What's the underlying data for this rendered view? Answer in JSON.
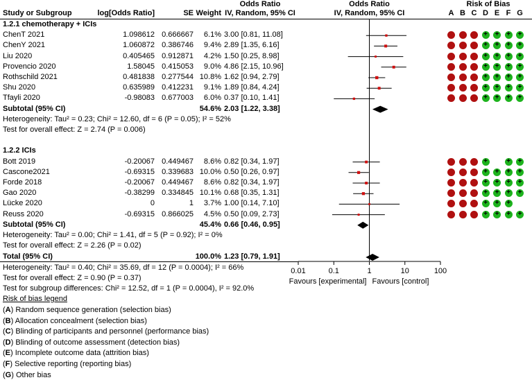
{
  "chart_data": {
    "type": "forest",
    "title": "Odds Ratio",
    "headers": {
      "study": "Study or Subgroup",
      "logor": "log[Odds Ratio]",
      "se": "SE",
      "weight": "Weight",
      "or_top": "Odds Ratio",
      "or_sub": "IV, Random, 95% CI",
      "plot_top": "Odds Ratio",
      "plot_sub": "IV, Random, 95% CI",
      "rob_title": "Risk of Bias",
      "rob_letters": [
        "A",
        "B",
        "C",
        "D",
        "E",
        "F",
        "G"
      ]
    },
    "x_scale": "log",
    "x_ticks": [
      "0.01",
      "0.1",
      "1",
      "10",
      "100"
    ],
    "x_range": [
      0.01,
      100
    ],
    "favours_left": "Favours [experimental]",
    "favours_right": "Favours [control]",
    "groups": [
      {
        "label": "1.2.1 chemotherapy + ICIs",
        "studies": [
          {
            "name": "ChenT 2021",
            "logor": "1.098612",
            "se": "0.666667",
            "weight": "6.1%",
            "ci": "3.00 [0.81, 11.08]",
            "or": 3.0,
            "lo": 0.81,
            "hi": 11.08,
            "rob": [
              "-",
              "-",
              "-",
              "+",
              "+",
              "+",
              "+"
            ]
          },
          {
            "name": "ChenY 2021",
            "logor": "1.060872",
            "se": "0.386746",
            "weight": "9.4%",
            "ci": "2.89 [1.35, 6.16]",
            "or": 2.89,
            "lo": 1.35,
            "hi": 6.16,
            "rob": [
              "-",
              "-",
              "-",
              "+",
              "+",
              "+",
              "+"
            ]
          },
          {
            "name": "Liu 2020",
            "logor": "0.405465",
            "se": "0.912871",
            "weight": "4.2%",
            "ci": "1.50 [0.25, 8.98]",
            "or": 1.5,
            "lo": 0.25,
            "hi": 8.98,
            "rob": [
              "-",
              "-",
              "-",
              "+",
              "+",
              "+",
              "+"
            ]
          },
          {
            "name": "Provencio 2020",
            "logor": "1.58045",
            "se": "0.415053",
            "weight": "9.0%",
            "ci": "4.86 [2.15, 10.96]",
            "or": 4.86,
            "lo": 2.15,
            "hi": 10.96,
            "rob": [
              "-",
              "-",
              "-",
              "+",
              "+",
              "+",
              "+"
            ]
          },
          {
            "name": "Rothschild 2021",
            "logor": "0.481838",
            "se": "0.277544",
            "weight": "10.8%",
            "ci": "1.62 [0.94, 2.79]",
            "or": 1.62,
            "lo": 0.94,
            "hi": 2.79,
            "rob": [
              "-",
              "-",
              "-",
              "+",
              "+",
              "+",
              "+"
            ]
          },
          {
            "name": "Shu 2020",
            "logor": "0.635989",
            "se": "0.412231",
            "weight": "9.1%",
            "ci": "1.89 [0.84, 4.24]",
            "or": 1.89,
            "lo": 0.84,
            "hi": 4.24,
            "rob": [
              "-",
              "-",
              "-",
              "+",
              "+",
              "+",
              "+"
            ]
          },
          {
            "name": "Tfayli 2020",
            "logor": "-0.98083",
            "se": "0.677003",
            "weight": "6.0%",
            "ci": "0.37 [0.10, 1.41]",
            "or": 0.37,
            "lo": 0.1,
            "hi": 1.41,
            "rob": [
              "-",
              "-",
              "-",
              "+",
              "+",
              "+",
              "+"
            ]
          }
        ],
        "subtotal": {
          "label": "Subtotal (95% CI)",
          "weight": "54.6%",
          "ci": "2.03 [1.22, 3.38]",
          "or": 2.03,
          "lo": 1.22,
          "hi": 3.38
        },
        "heterogeneity": "Heterogeneity: Tau² = 0.23; Chi² = 12.60, df = 6 (P = 0.05); I² = 52%",
        "overall": "Test for overall effect: Z = 2.74 (P = 0.006)"
      },
      {
        "label": "1.2.2 ICIs",
        "studies": [
          {
            "name": "Bott 2019",
            "logor": "-0.20067",
            "se": "0.449467",
            "weight": "8.6%",
            "ci": "0.82 [0.34, 1.97]",
            "or": 0.82,
            "lo": 0.34,
            "hi": 1.97,
            "rob": [
              "-",
              "-",
              "-",
              "+",
              "",
              "+",
              "+"
            ]
          },
          {
            "name": "Cascone2021",
            "logor": "-0.69315",
            "se": "0.339683",
            "weight": "10.0%",
            "ci": "0.50 [0.26, 0.97]",
            "or": 0.5,
            "lo": 0.26,
            "hi": 0.97,
            "rob": [
              "-",
              "-",
              "-",
              "+",
              "+",
              "+",
              "+"
            ]
          },
          {
            "name": "Forde 2018",
            "logor": "-0.20067",
            "se": "0.449467",
            "weight": "8.6%",
            "ci": "0.82 [0.34, 1.97]",
            "or": 0.82,
            "lo": 0.34,
            "hi": 1.97,
            "rob": [
              "-",
              "-",
              "-",
              "+",
              "+",
              "+",
              "+"
            ]
          },
          {
            "name": "Gao 2020",
            "logor": "-0.38299",
            "se": "0.334845",
            "weight": "10.1%",
            "ci": "0.68 [0.35, 1.31]",
            "or": 0.68,
            "lo": 0.35,
            "hi": 1.31,
            "rob": [
              "-",
              "-",
              "-",
              "+",
              "+",
              "+",
              "+"
            ]
          },
          {
            "name": "Lücke 2020",
            "logor": "0",
            "se": "1",
            "weight": "3.7%",
            "ci": "1.00 [0.14, 7.10]",
            "or": 1.0,
            "lo": 0.14,
            "hi": 7.1,
            "rob": [
              "-",
              "-",
              "-",
              "+",
              "+",
              "+",
              ""
            ]
          },
          {
            "name": "Reuss 2020",
            "logor": "-0.69315",
            "se": "0.866025",
            "weight": "4.5%",
            "ci": "0.50 [0.09, 2.73]",
            "or": 0.5,
            "lo": 0.09,
            "hi": 2.73,
            "rob": [
              "-",
              "-",
              "-",
              "+",
              "+",
              "+",
              "+"
            ]
          }
        ],
        "subtotal": {
          "label": "Subtotal (95% CI)",
          "weight": "45.4%",
          "ci": "0.66 [0.46, 0.95]",
          "or": 0.66,
          "lo": 0.46,
          "hi": 0.95
        },
        "heterogeneity": "Heterogeneity: Tau² = 0.00; Chi² = 1.41, df = 5 (P = 0.92); I² = 0%",
        "overall": "Test for overall effect: Z = 2.26 (P = 0.02)"
      }
    ],
    "total": {
      "label": "Total (95% CI)",
      "weight": "100.0%",
      "ci": "1.23 [0.79, 1.91]",
      "or": 1.23,
      "lo": 0.79,
      "hi": 1.91
    },
    "total_heterogeneity": "Heterogeneity: Tau² = 0.40; Chi² = 35.69, df = 12 (P = 0.0004); I² = 66%",
    "total_overall": "Test for overall effect: Z = 0.90 (P = 0.37)",
    "subgroup_diff": "Test for subgroup differences: Chi² = 12.52, df = 1 (P = 0.0004), I² = 92.0%",
    "legend_title": "Risk of bias legend",
    "legend": [
      {
        "letter": "A",
        "text": " Random sequence generation (selection bias)"
      },
      {
        "letter": "B",
        "text": " Allocation concealment (selection bias)"
      },
      {
        "letter": "C",
        "text": " Blinding of participants and personnel (performance bias)"
      },
      {
        "letter": "D",
        "text": " Blinding of outcome assessment (detection bias)"
      },
      {
        "letter": "E",
        "text": " Incomplete outcome data (attrition bias)"
      },
      {
        "letter": "F",
        "text": " Selective reporting (reporting bias)"
      },
      {
        "letter": "G",
        "text": " Other bias"
      }
    ],
    "colors": {
      "low_risk": "#1db31d",
      "high_risk": "#b01010",
      "point": "#d01010",
      "line": "#000000"
    }
  }
}
